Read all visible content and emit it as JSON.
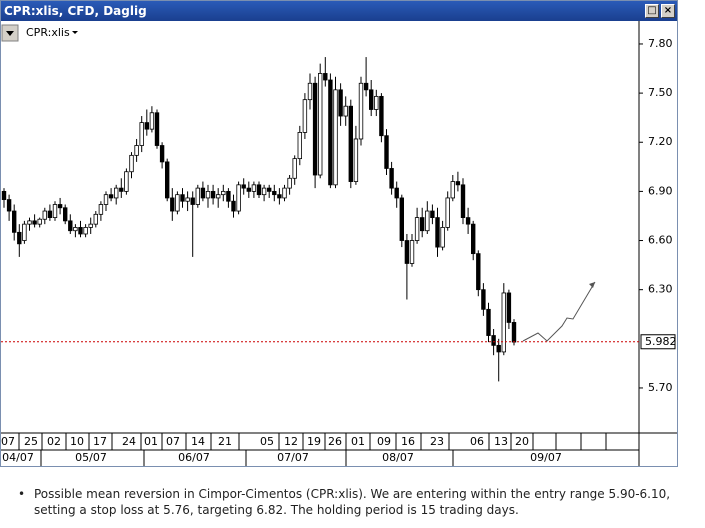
{
  "window": {
    "title": "CPR:xlis, CFD, Daglig",
    "symbol": "CPR:xlis"
  },
  "chart_data": {
    "type": "candlestick",
    "ohlc": [
      [
        6.9,
        6.92,
        6.8,
        6.85
      ],
      [
        6.85,
        6.88,
        6.72,
        6.78
      ],
      [
        6.78,
        6.82,
        6.6,
        6.65
      ],
      [
        6.65,
        6.7,
        6.5,
        6.58
      ],
      [
        6.6,
        6.72,
        6.58,
        6.7
      ],
      [
        6.7,
        6.74,
        6.66,
        6.72
      ],
      [
        6.72,
        6.76,
        6.68,
        6.7
      ],
      [
        6.7,
        6.74,
        6.68,
        6.73
      ],
      [
        6.73,
        6.8,
        6.7,
        6.78
      ],
      [
        6.78,
        6.82,
        6.72,
        6.74
      ],
      [
        6.74,
        6.84,
        6.72,
        6.82
      ],
      [
        6.82,
        6.86,
        6.76,
        6.8
      ],
      [
        6.8,
        6.82,
        6.7,
        6.72
      ],
      [
        6.72,
        6.76,
        6.64,
        6.66
      ],
      [
        6.66,
        6.7,
        6.62,
        6.68
      ],
      [
        6.68,
        6.72,
        6.62,
        6.64
      ],
      [
        6.64,
        6.7,
        6.62,
        6.68
      ],
      [
        6.68,
        6.74,
        6.64,
        6.7
      ],
      [
        6.7,
        6.78,
        6.68,
        6.76
      ],
      [
        6.76,
        6.84,
        6.72,
        6.82
      ],
      [
        6.82,
        6.9,
        6.78,
        6.88
      ],
      [
        6.88,
        6.92,
        6.84,
        6.86
      ],
      [
        6.86,
        6.94,
        6.82,
        6.92
      ],
      [
        6.92,
        6.98,
        6.86,
        6.9
      ],
      [
        6.9,
        7.04,
        6.88,
        7.02
      ],
      [
        7.02,
        7.14,
        6.98,
        7.12
      ],
      [
        7.12,
        7.22,
        7.08,
        7.18
      ],
      [
        7.18,
        7.36,
        7.14,
        7.32
      ],
      [
        7.32,
        7.4,
        7.24,
        7.28
      ],
      [
        7.28,
        7.42,
        7.26,
        7.38
      ],
      [
        7.38,
        7.4,
        7.16,
        7.18
      ],
      [
        7.18,
        7.2,
        7.04,
        7.08
      ],
      [
        7.08,
        7.1,
        6.84,
        6.86
      ],
      [
        6.86,
        6.92,
        6.72,
        6.78
      ],
      [
        6.78,
        6.9,
        6.76,
        6.88
      ],
      [
        6.88,
        6.92,
        6.8,
        6.84
      ],
      [
        6.84,
        6.9,
        6.78,
        6.86
      ],
      [
        6.86,
        6.9,
        6.5,
        6.82
      ],
      [
        6.82,
        6.94,
        6.8,
        6.92
      ],
      [
        6.92,
        6.96,
        6.84,
        6.86
      ],
      [
        6.86,
        6.94,
        6.8,
        6.9
      ],
      [
        6.9,
        6.94,
        6.82,
        6.86
      ],
      [
        6.86,
        6.92,
        6.8,
        6.88
      ],
      [
        6.88,
        6.94,
        6.84,
        6.9
      ],
      [
        6.9,
        6.92,
        6.8,
        6.84
      ],
      [
        6.84,
        6.88,
        6.74,
        6.78
      ],
      [
        6.78,
        6.96,
        6.76,
        6.94
      ],
      [
        6.94,
        6.98,
        6.88,
        6.92
      ],
      [
        6.92,
        6.96,
        6.86,
        6.9
      ],
      [
        6.9,
        6.96,
        6.86,
        6.94
      ],
      [
        6.94,
        6.96,
        6.86,
        6.88
      ],
      [
        6.88,
        6.94,
        6.84,
        6.92
      ],
      [
        6.92,
        6.94,
        6.86,
        6.9
      ],
      [
        6.9,
        6.94,
        6.84,
        6.88
      ],
      [
        6.88,
        6.92,
        6.82,
        6.86
      ],
      [
        6.86,
        6.94,
        6.84,
        6.92
      ],
      [
        6.92,
        7.0,
        6.88,
        6.98
      ],
      [
        6.98,
        7.12,
        6.94,
        7.1
      ],
      [
        7.1,
        7.3,
        7.06,
        7.26
      ],
      [
        7.26,
        7.5,
        7.22,
        7.46
      ],
      [
        7.46,
        7.62,
        7.4,
        7.56
      ],
      [
        7.56,
        7.6,
        6.92,
        7.0
      ],
      [
        7.0,
        7.68,
        6.98,
        7.62
      ],
      [
        7.62,
        7.72,
        7.54,
        7.58
      ],
      [
        7.58,
        7.62,
        6.92,
        6.94
      ],
      [
        6.94,
        7.6,
        6.92,
        7.52
      ],
      [
        7.52,
        7.56,
        7.3,
        7.36
      ],
      [
        7.36,
        7.48,
        7.3,
        7.42
      ],
      [
        7.42,
        7.46,
        6.92,
        6.96
      ],
      [
        6.96,
        7.3,
        6.94,
        7.22
      ],
      [
        7.22,
        7.6,
        7.18,
        7.56
      ],
      [
        7.56,
        7.72,
        7.48,
        7.52
      ],
      [
        7.52,
        7.58,
        7.36,
        7.4
      ],
      [
        7.4,
        7.52,
        7.36,
        7.48
      ],
      [
        7.48,
        7.5,
        7.2,
        7.24
      ],
      [
        7.24,
        7.28,
        7.0,
        7.04
      ],
      [
        7.04,
        7.08,
        6.88,
        6.92
      ],
      [
        6.92,
        6.96,
        6.8,
        6.86
      ],
      [
        6.86,
        6.88,
        6.56,
        6.6
      ],
      [
        6.6,
        6.64,
        6.24,
        6.46
      ],
      [
        6.46,
        6.64,
        6.44,
        6.6
      ],
      [
        6.6,
        6.8,
        6.58,
        6.74
      ],
      [
        6.74,
        6.8,
        6.62,
        6.66
      ],
      [
        6.66,
        6.84,
        6.64,
        6.78
      ],
      [
        6.78,
        6.82,
        6.7,
        6.74
      ],
      [
        6.74,
        6.8,
        6.5,
        6.56
      ],
      [
        6.56,
        6.72,
        6.54,
        6.68
      ],
      [
        6.68,
        6.9,
        6.66,
        6.86
      ],
      [
        6.86,
        7.0,
        6.84,
        6.96
      ],
      [
        6.96,
        7.02,
        6.9,
        6.94
      ],
      [
        6.94,
        6.98,
        6.7,
        6.74
      ],
      [
        6.74,
        6.8,
        6.64,
        6.7
      ],
      [
        6.7,
        6.72,
        6.48,
        6.52
      ],
      [
        6.52,
        6.54,
        6.26,
        6.3
      ],
      [
        6.3,
        6.34,
        6.14,
        6.18
      ],
      [
        6.18,
        6.22,
        5.98,
        6.02
      ],
      [
        6.02,
        6.06,
        5.9,
        5.96
      ],
      [
        5.96,
        6.0,
        5.74,
        5.92
      ],
      [
        5.92,
        6.34,
        5.9,
        6.28
      ],
      [
        6.28,
        6.3,
        6.06,
        6.1
      ],
      [
        6.1,
        6.12,
        5.96,
        5.98
      ]
    ],
    "ylim": [
      5.425,
      7.928
    ],
    "yticks": [
      {
        "value": 7.8,
        "label": "7.80"
      },
      {
        "value": 7.5,
        "label": "7.50"
      },
      {
        "value": 7.2,
        "label": "7.20"
      },
      {
        "value": 6.9,
        "label": "6.90"
      },
      {
        "value": 6.6,
        "label": "6.60"
      },
      {
        "value": 6.3,
        "label": "6.30"
      },
      {
        "value": 5.7,
        "label": "5.70"
      }
    ],
    "price_line": {
      "value": 5.982,
      "label": "5.982",
      "color": "#cc0000"
    },
    "x_day_labels": [
      "07",
      "25",
      "02",
      "10",
      "17",
      "24",
      "01",
      "07",
      "14",
      "21",
      "05",
      "12",
      "19",
      "26",
      "01",
      "09",
      "16",
      "23",
      "06",
      "13",
      "20"
    ],
    "x_month_labels": [
      "04/07",
      "05/07",
      "06/07",
      "07/07",
      "08/07",
      "09/07"
    ]
  },
  "note": "Possible mean reversion in Cimpor-Cimentos (CPR:xlis). We are entering within the entry range 5.90-6.10, setting a stop loss at 5.76, targeting 6.82. The holding period is 15 trading days."
}
